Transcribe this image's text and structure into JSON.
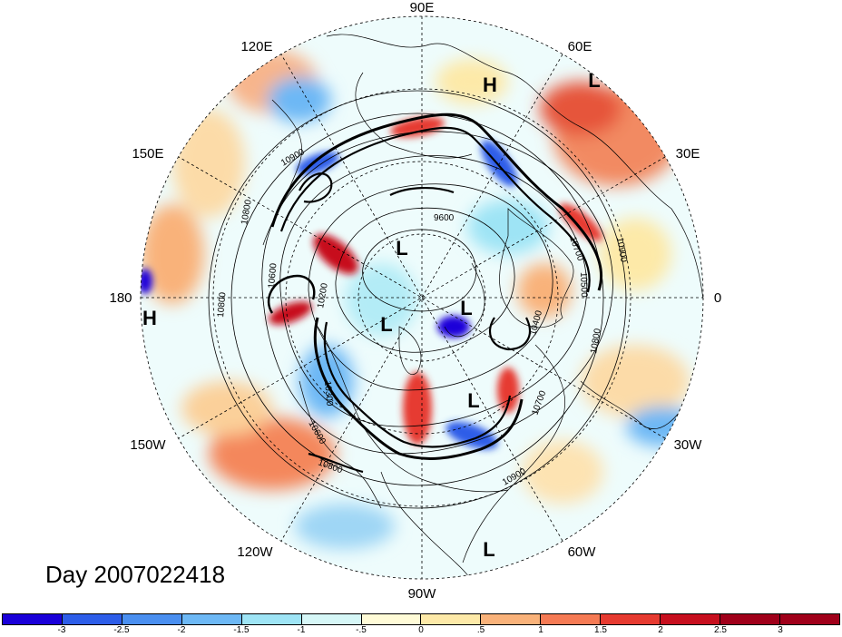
{
  "map": {
    "projection": "north-polar-stereographic",
    "longitude_labels": [
      "90E",
      "60E",
      "30E",
      "0",
      "30W",
      "60W",
      "90W",
      "120W",
      "150W",
      "180",
      "150E",
      "120E"
    ],
    "pressure_systems": [
      {
        "type": "H",
        "label": "H",
        "near": "60E"
      },
      {
        "type": "L",
        "label": "L",
        "near": "45E"
      },
      {
        "type": "L",
        "label": "L",
        "near": "pole-east"
      },
      {
        "type": "L",
        "label": "L",
        "near": "pole"
      },
      {
        "type": "L",
        "label": "L",
        "near": "pole-south"
      },
      {
        "type": "L",
        "label": "L",
        "near": "60W"
      },
      {
        "type": "L",
        "label": "L",
        "near": "60W-outer"
      },
      {
        "type": "H",
        "label": "H",
        "near": "180"
      }
    ],
    "contour_labels": [
      "10900",
      "10800",
      "10600",
      "9600",
      "10700",
      "10900",
      "10500",
      "10400",
      "10800",
      "10800",
      "10600",
      "10700",
      "10900",
      "10800",
      "10200",
      "10300"
    ],
    "colors": {
      "land_outline": "#000000",
      "contour": "#000000",
      "strong_positive": "#c4000f",
      "strong_negative": "#1a00c8"
    }
  },
  "date": {
    "text": "Day 2007022418"
  },
  "colorbar": {
    "colors": [
      "#1a00d9",
      "#2d5de8",
      "#4a8ff0",
      "#6db8f5",
      "#9ee4f5",
      "#d6f7f7",
      "#fffbd7",
      "#fde9a8",
      "#f9b27a",
      "#f57a54",
      "#e63a30",
      "#c70f1e",
      "#a0001a",
      "#a0001a"
    ],
    "tick_labels": [
      "-3",
      "-2.5",
      "-2",
      "-1.5",
      "-1",
      "-.5",
      "0",
      ".5",
      "1",
      "1.5",
      "2",
      "2.5",
      "3"
    ]
  }
}
